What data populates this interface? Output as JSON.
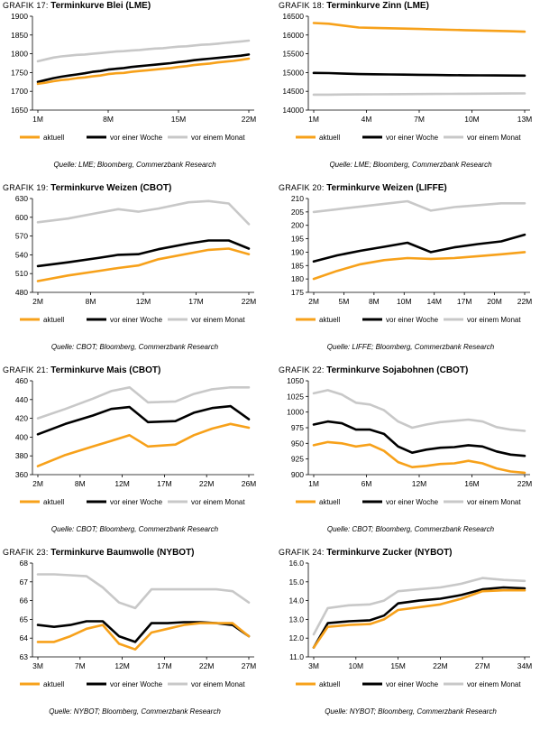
{
  "source_prefix": "Quelle: ",
  "legend": {
    "aktuell": "aktuell",
    "woche": "vor einer Woche",
    "monat": "vor einem Monat"
  },
  "colors": {
    "aktuell": "#F7A11A",
    "woche": "#000000",
    "monat": "#C8C8C8"
  },
  "chart_data": [
    {
      "type": "line",
      "figure": "GRAFIK 17:",
      "title": "Terminkurve Blei (LME)",
      "source": "LME; Bloomberg, Commerzbank Research",
      "ylim": [
        1650,
        1900
      ],
      "yticks": [
        1650,
        1700,
        1750,
        1800,
        1850,
        1900
      ],
      "xlabels": [
        "1M",
        "8M",
        "15M",
        "22M"
      ],
      "x": [
        1,
        2,
        3,
        4,
        5,
        6,
        7,
        8,
        9,
        10,
        11,
        12,
        13,
        14,
        15,
        16,
        17,
        18,
        19,
        20,
        21,
        22,
        23,
        24,
        25,
        26,
        27,
        28
      ],
      "series": [
        {
          "key": "aktuell",
          "values": [
            1720,
            1723,
            1727,
            1730,
            1732,
            1735,
            1737,
            1740,
            1742,
            1746,
            1748,
            1749,
            1752,
            1754,
            1756,
            1758,
            1760,
            1762,
            1765,
            1767,
            1770,
            1772,
            1774,
            1777,
            1779,
            1781,
            1784,
            1787
          ]
        },
        {
          "key": "woche",
          "values": [
            1725,
            1730,
            1735,
            1739,
            1742,
            1745,
            1748,
            1752,
            1754,
            1758,
            1760,
            1762,
            1765,
            1767,
            1769,
            1771,
            1773,
            1775,
            1778,
            1780,
            1783,
            1785,
            1787,
            1789,
            1791,
            1793,
            1795,
            1798
          ]
        },
        {
          "key": "monat",
          "values": [
            1780,
            1785,
            1790,
            1793,
            1795,
            1797,
            1798,
            1800,
            1802,
            1804,
            1806,
            1807,
            1809,
            1810,
            1812,
            1814,
            1815,
            1817,
            1819,
            1820,
            1822,
            1824,
            1825,
            1827,
            1829,
            1831,
            1833,
            1835
          ]
        }
      ]
    },
    {
      "type": "line",
      "figure": "GRAFIK 18:",
      "title": "Terminkurve Zinn (LME)",
      "source": "LME; Bloomberg, Commerzbank Research",
      "ylim": [
        14000,
        16500
      ],
      "yticks": [
        14000,
        14500,
        15000,
        15500,
        16000,
        16500
      ],
      "xlabels": [
        "1M",
        "4M",
        "7M",
        "10M",
        "13M"
      ],
      "x": [
        1,
        2,
        3,
        4,
        5,
        6,
        7,
        8,
        9,
        10,
        11,
        12,
        13,
        14,
        15
      ],
      "series": [
        {
          "key": "aktuell",
          "values": [
            16320,
            16300,
            16250,
            16200,
            16190,
            16180,
            16170,
            16160,
            16150,
            16140,
            16130,
            16120,
            16110,
            16100,
            16090
          ]
        },
        {
          "key": "woche",
          "values": [
            14990,
            14985,
            14970,
            14960,
            14955,
            14950,
            14945,
            14940,
            14935,
            14930,
            14928,
            14925,
            14922,
            14920,
            14918
          ]
        },
        {
          "key": "monat",
          "values": [
            14410,
            14410,
            14415,
            14418,
            14420,
            14422,
            14425,
            14428,
            14430,
            14432,
            14435,
            14437,
            14440,
            14442,
            14445
          ]
        }
      ]
    },
    {
      "type": "line",
      "figure": "GRAFIK 19:",
      "title": "Terminkurve Weizen (CBOT)",
      "source": "CBOT; Bloomberg, Commerzbank Research",
      "ylim": [
        480,
        630
      ],
      "yticks": [
        480,
        510,
        540,
        570,
        600,
        630
      ],
      "xlabels": [
        "2M",
        "8M",
        "12M",
        "17M",
        "22M"
      ],
      "x": [
        2,
        5,
        8,
        10,
        12,
        14,
        17,
        19,
        21,
        23
      ],
      "series": [
        {
          "key": "aktuell",
          "values": [
            498,
            507,
            514,
            519,
            523,
            533,
            542,
            548,
            550,
            541
          ]
        },
        {
          "key": "woche",
          "values": [
            522,
            528,
            535,
            540,
            541,
            549,
            558,
            563,
            563,
            550
          ]
        },
        {
          "key": "monat",
          "values": [
            592,
            598,
            607,
            613,
            609,
            614,
            624,
            626,
            622,
            589
          ]
        }
      ]
    },
    {
      "type": "line",
      "figure": "GRAFIK 20:",
      "title": "Terminkurve Weizen (LIFFE)",
      "source": "LIFFE; Bloomberg, Commerzbank Research",
      "ylim": [
        175,
        210
      ],
      "yticks": [
        175,
        180,
        185,
        190,
        195,
        200,
        205,
        210
      ],
      "xlabels": [
        "2M",
        "5M",
        "8M",
        "10M",
        "14M",
        "17M",
        "20M",
        "22M"
      ],
      "x": [
        2,
        4,
        6,
        8,
        10,
        12,
        14,
        16,
        18,
        20
      ],
      "series": [
        {
          "key": "aktuell",
          "values": [
            180,
            183,
            185.5,
            187,
            187.8,
            187.5,
            187.8,
            188.5,
            189.2,
            190
          ]
        },
        {
          "key": "woche",
          "values": [
            186.5,
            188.8,
            190.5,
            192,
            193.5,
            190,
            191.8,
            193,
            194,
            196.5
          ]
        },
        {
          "key": "monat",
          "values": [
            205,
            206,
            207,
            208,
            209,
            205.5,
            206.8,
            207.5,
            208.2,
            208.2
          ]
        }
      ]
    },
    {
      "type": "line",
      "figure": "GRAFIK 21:",
      "title": "Terminkurve Mais (CBOT)",
      "source": "CBOT; Bloomberg, Commerzbank Research",
      "ylim": [
        360,
        460
      ],
      "yticks": [
        360,
        380,
        400,
        420,
        440,
        460
      ],
      "xlabels": [
        "2M",
        "8M",
        "12M",
        "17M",
        "22M",
        "26M"
      ],
      "x": [
        2,
        5,
        8,
        10,
        12,
        14,
        17,
        19,
        21,
        23,
        25
      ],
      "series": [
        {
          "key": "aktuell",
          "values": [
            369,
            381,
            390,
            396,
            402,
            390,
            392,
            402,
            409,
            414,
            410
          ]
        },
        {
          "key": "woche",
          "values": [
            403,
            414,
            423,
            430,
            432,
            416,
            417,
            426,
            431,
            433,
            419
          ]
        },
        {
          "key": "monat",
          "values": [
            420,
            430,
            441,
            449,
            453,
            437,
            438,
            446,
            451,
            453,
            453
          ]
        }
      ]
    },
    {
      "type": "line",
      "figure": "GRAFIK 22:",
      "title": "Terminkurve Sojabohnen (CBOT)",
      "source": "CBOT; Bloomberg, Commerzbank Research",
      "ylim": [
        900,
        1050
      ],
      "yticks": [
        900,
        925,
        950,
        975,
        1000,
        1025,
        1050
      ],
      "xlabels": [
        "1M",
        "6M",
        "12M",
        "16M",
        "22M"
      ],
      "x": [
        1,
        2,
        3,
        4,
        5,
        6,
        7,
        8,
        9,
        10,
        11,
        12,
        13,
        14,
        15,
        16
      ],
      "series": [
        {
          "key": "aktuell",
          "values": [
            947,
            952,
            950,
            945,
            948,
            938,
            920,
            912,
            914,
            917,
            918,
            922,
            918,
            910,
            905,
            903
          ]
        },
        {
          "key": "woche",
          "values": [
            980,
            985,
            982,
            972,
            972,
            965,
            945,
            935,
            940,
            943,
            944,
            947,
            945,
            937,
            932,
            930
          ]
        },
        {
          "key": "monat",
          "values": [
            1030,
            1035,
            1028,
            1015,
            1012,
            1003,
            985,
            975,
            980,
            984,
            986,
            988,
            985,
            976,
            972,
            970
          ]
        }
      ]
    },
    {
      "type": "line",
      "figure": "GRAFIK 23:",
      "title": "Terminkurve Baumwolle (NYBOT)",
      "source": "NYBOT; Bloomberg, Commerzbank Research",
      "ylim": [
        63,
        68
      ],
      "yticks": [
        63,
        64,
        65,
        66,
        67,
        68
      ],
      "xlabels": [
        "3M",
        "7M",
        "12M",
        "17M",
        "22M",
        "27M"
      ],
      "x": [
        3,
        5,
        7,
        9,
        11,
        13,
        15,
        17,
        19,
        21,
        23,
        25,
        27,
        29
      ],
      "series": [
        {
          "key": "aktuell",
          "values": [
            63.8,
            63.8,
            64.1,
            64.5,
            64.7,
            63.7,
            63.4,
            64.3,
            64.5,
            64.7,
            64.8,
            64.8,
            64.8,
            64.1
          ]
        },
        {
          "key": "woche",
          "values": [
            64.7,
            64.6,
            64.7,
            64.9,
            64.9,
            64.1,
            63.8,
            64.8,
            64.8,
            64.85,
            64.85,
            64.8,
            64.7,
            64.1
          ]
        },
        {
          "key": "monat",
          "values": [
            67.4,
            67.4,
            67.35,
            67.3,
            66.7,
            65.9,
            65.6,
            66.6,
            66.6,
            66.6,
            66.6,
            66.6,
            66.5,
            65.9
          ]
        }
      ]
    },
    {
      "type": "line",
      "figure": "GRAFIK 24:",
      "title": "Terminkurve Zucker (NYBOT)",
      "source": "NYBOT; Bloomberg, Commerzbank Research",
      "ylim": [
        11.0,
        16.0
      ],
      "yticks": [
        "11.0",
        "12.0",
        "13.0",
        "14.0",
        "15.0",
        "16.0"
      ],
      "xlabels": [
        "3M",
        "10M",
        "15M",
        "22M",
        "27M",
        "34M"
      ],
      "x": [
        3,
        5,
        8,
        11,
        13,
        15,
        18,
        21,
        24,
        27,
        30,
        33
      ],
      "series": [
        {
          "key": "aktuell",
          "values": [
            11.5,
            12.6,
            12.7,
            12.75,
            13.0,
            13.5,
            13.65,
            13.8,
            14.1,
            14.5,
            14.55,
            14.55
          ]
        },
        {
          "key": "woche",
          "values": [
            11.5,
            12.8,
            12.9,
            12.95,
            13.2,
            13.85,
            14.0,
            14.1,
            14.3,
            14.6,
            14.7,
            14.65
          ]
        },
        {
          "key": "monat",
          "values": [
            12.2,
            13.6,
            13.75,
            13.8,
            14.0,
            14.5,
            14.6,
            14.7,
            14.9,
            15.2,
            15.1,
            15.05
          ]
        }
      ]
    }
  ]
}
